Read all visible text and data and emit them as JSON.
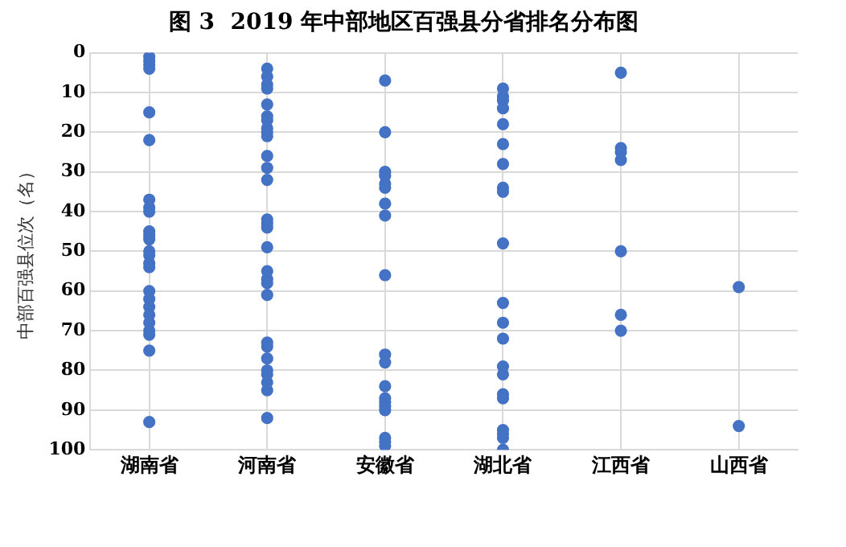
{
  "chart_data": {
    "type": "scatter",
    "title": "图 3  2019 年中部地区百强县分省排名分布图",
    "ylabel": "中部百强县位次（名）",
    "categories": [
      "湖南省",
      "河南省",
      "安徽省",
      "湖北省",
      "江西省",
      "山西省"
    ],
    "series": [
      {
        "color": "#4472c4",
        "x": [
          "湖南省",
          "湖南省",
          "湖南省",
          "湖南省",
          "湖南省",
          "湖南省",
          "湖南省",
          "湖南省",
          "湖南省",
          "湖南省",
          "湖南省",
          "湖南省",
          "湖南省",
          "湖南省",
          "湖南省",
          "湖南省",
          "湖南省",
          "湖南省",
          "湖南省",
          "湖南省",
          "湖南省",
          "湖南省",
          "湖南省",
          "湖南省",
          "湖南省",
          "河南省",
          "河南省",
          "河南省",
          "河南省",
          "河南省",
          "河南省",
          "河南省",
          "河南省",
          "河南省",
          "河南省",
          "河南省",
          "河南省",
          "河南省",
          "河南省",
          "河南省",
          "河南省",
          "河南省",
          "河南省",
          "河南省",
          "河南省",
          "河南省",
          "河南省",
          "河南省",
          "河南省",
          "河南省",
          "河南省",
          "河南省",
          "河南省",
          "河南省",
          "安徽省",
          "安徽省",
          "安徽省",
          "安徽省",
          "安徽省",
          "安徽省",
          "安徽省",
          "安徽省",
          "安徽省",
          "安徽省",
          "安徽省",
          "安徽省",
          "安徽省",
          "安徽省",
          "安徽省",
          "安徽省",
          "安徽省",
          "安徽省",
          "安徽省",
          "湖北省",
          "湖北省",
          "湖北省",
          "湖北省",
          "湖北省",
          "湖北省",
          "湖北省",
          "湖北省",
          "湖北省",
          "湖北省",
          "湖北省",
          "湖北省",
          "湖北省",
          "湖北省",
          "湖北省",
          "湖北省",
          "湖北省",
          "湖北省",
          "湖北省",
          "湖北省",
          "湖北省",
          "江西省",
          "江西省",
          "江西省",
          "江西省",
          "江西省",
          "江西省",
          "江西省",
          "山西省",
          "山西省"
        ],
        "values": [
          1,
          2,
          3,
          4,
          15,
          22,
          37,
          39,
          40,
          45,
          46,
          47,
          50,
          51,
          53,
          54,
          60,
          62,
          64,
          66,
          68,
          70,
          71,
          75,
          93,
          4,
          6,
          8,
          9,
          13,
          16,
          17,
          19,
          20,
          21,
          26,
          29,
          32,
          42,
          43,
          44,
          49,
          55,
          57,
          58,
          61,
          73,
          74,
          77,
          80,
          81,
          83,
          85,
          92,
          7,
          20,
          30,
          31,
          33,
          34,
          38,
          41,
          56,
          76,
          78,
          84,
          87,
          88,
          89,
          90,
          97,
          98,
          99,
          9,
          11,
          12,
          14,
          18,
          23,
          28,
          34,
          35,
          48,
          63,
          68,
          72,
          79,
          81,
          86,
          87,
          95,
          96,
          97,
          100,
          5,
          24,
          25,
          27,
          50,
          66,
          70,
          59,
          94
        ]
      }
    ],
    "ylim": [
      100,
      0
    ],
    "yticks": [
      0,
      10,
      20,
      30,
      40,
      50,
      60,
      70,
      80,
      90,
      100
    ],
    "grid": true,
    "legend": false,
    "marker": "circle"
  }
}
